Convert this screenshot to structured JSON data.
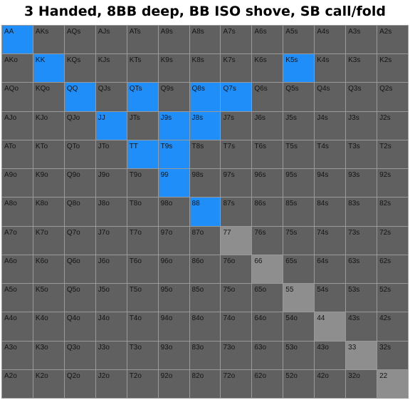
{
  "title": "3 Handed, 8BB deep, BB ISO shove, SB call/fold",
  "colors": {
    "shove": "#1f8ef9",
    "fold": "#606060",
    "pair_fold": "#8e8e8e"
  },
  "chart_data": {
    "type": "table",
    "title": "3 Handed, 8BB deep, BB ISO shove, SB call/fold",
    "rows": [
      [
        "AA",
        "AKs",
        "AQs",
        "AJs",
        "ATs",
        "A9s",
        "A8s",
        "A7s",
        "A6s",
        "A5s",
        "A4s",
        "A3s",
        "A2s"
      ],
      [
        "AKo",
        "KK",
        "KQs",
        "KJs",
        "KTs",
        "K9s",
        "K8s",
        "K7s",
        "K6s",
        "K5s",
        "K4s",
        "K3s",
        "K2s"
      ],
      [
        "AQo",
        "KQo",
        "QQ",
        "QJs",
        "QTs",
        "Q9s",
        "Q8s",
        "Q7s",
        "Q6s",
        "Q5s",
        "Q4s",
        "Q3s",
        "Q2s"
      ],
      [
        "AJo",
        "KJo",
        "QJo",
        "JJ",
        "JTs",
        "J9s",
        "J8s",
        "J7s",
        "J6s",
        "J5s",
        "J4s",
        "J3s",
        "J2s"
      ],
      [
        "ATo",
        "KTo",
        "QTo",
        "JTo",
        "TT",
        "T9s",
        "T8s",
        "T7s",
        "T6s",
        "T5s",
        "T4s",
        "T3s",
        "T2s"
      ],
      [
        "A9o",
        "K9o",
        "Q9o",
        "J9o",
        "T9o",
        "99",
        "98s",
        "97s",
        "96s",
        "95s",
        "94s",
        "93s",
        "92s"
      ],
      [
        "A8o",
        "K8o",
        "Q8o",
        "J8o",
        "T8o",
        "98o",
        "88",
        "87s",
        "86s",
        "85s",
        "84s",
        "83s",
        "82s"
      ],
      [
        "A7o",
        "K7o",
        "Q7o",
        "J7o",
        "T7o",
        "97o",
        "87o",
        "77",
        "76s",
        "75s",
        "74s",
        "73s",
        "72s"
      ],
      [
        "A6o",
        "K6o",
        "Q6o",
        "J6o",
        "T6o",
        "96o",
        "86o",
        "76o",
        "66",
        "65s",
        "64s",
        "63s",
        "62s"
      ],
      [
        "A5o",
        "K5o",
        "Q5o",
        "J5o",
        "T5o",
        "95o",
        "85o",
        "75o",
        "65o",
        "55",
        "54s",
        "53s",
        "52s"
      ],
      [
        "A4o",
        "K4o",
        "Q4o",
        "J4o",
        "T4o",
        "94o",
        "84o",
        "74o",
        "64o",
        "54o",
        "44",
        "43s",
        "42s"
      ],
      [
        "A3o",
        "K3o",
        "Q3o",
        "J3o",
        "T3o",
        "93o",
        "83o",
        "73o",
        "63o",
        "53o",
        "43o",
        "33",
        "32s"
      ],
      [
        "A2o",
        "K2o",
        "Q2o",
        "J2o",
        "T2o",
        "92o",
        "82o",
        "72o",
        "62o",
        "52o",
        "42o",
        "32o",
        "22"
      ]
    ],
    "highlighted": [
      "AA",
      "KK",
      "K5s",
      "QQ",
      "QTs",
      "Q8s",
      "Q7s",
      "JJ",
      "J9s",
      "J8s",
      "TT",
      "T9s",
      "99",
      "88"
    ]
  }
}
